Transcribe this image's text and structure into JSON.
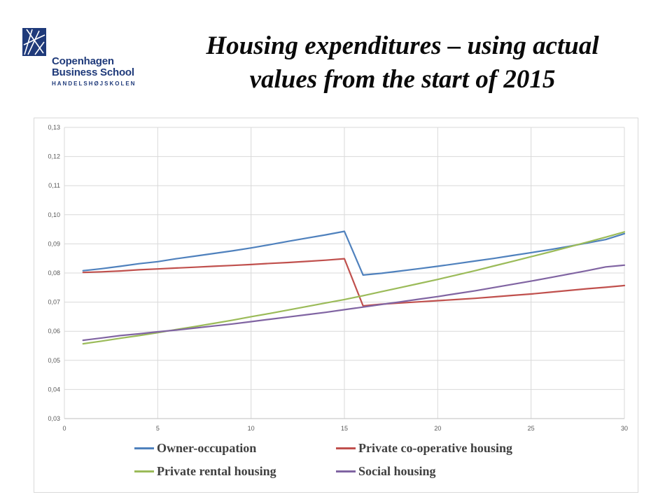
{
  "logo": {
    "line1": "Copenhagen",
    "line2": "Business School",
    "line3": "HANDELSHØJSKOLEN",
    "color": "#1f3a7a"
  },
  "title_line1": "Housing expenditures – using actual",
  "title_line2": "values from the start of 2015",
  "chart_data": {
    "type": "line",
    "title": "Housing expenditures – using actual values from the start of 2015",
    "xlabel": "",
    "ylabel": "",
    "xlim": [
      0,
      30
    ],
    "ylim": [
      0.03,
      0.13
    ],
    "x_ticks": [
      "0",
      "5",
      "10",
      "15",
      "20",
      "25",
      "30"
    ],
    "y_ticks": [
      "0,03",
      "0,04",
      "0,05",
      "0,06",
      "0,07",
      "0,08",
      "0,09",
      "0,10",
      "0,11",
      "0,12",
      "0,13"
    ],
    "grid": true,
    "legend_position": "bottom",
    "x": [
      1,
      2,
      3,
      4,
      5,
      6,
      7,
      8,
      9,
      10,
      11,
      12,
      13,
      14,
      15,
      16,
      17,
      18,
      19,
      20,
      21,
      22,
      23,
      24,
      25,
      26,
      27,
      28,
      29,
      30
    ],
    "series": [
      {
        "name": "Owner-occupation",
        "color": "#4f81bd",
        "values": [
          0.0808,
          0.0815,
          0.0823,
          0.0832,
          0.0839,
          0.0849,
          0.0858,
          0.0867,
          0.0876,
          0.0886,
          0.0897,
          0.0909,
          0.092,
          0.0931,
          0.0943,
          0.0793,
          0.0799,
          0.0807,
          0.0815,
          0.0823,
          0.0832,
          0.0841,
          0.085,
          0.086,
          0.087,
          0.088,
          0.0891,
          0.0903,
          0.0915,
          0.0935
        ]
      },
      {
        "name": "Private co-operative housing",
        "color": "#c0504d",
        "values": [
          0.0802,
          0.0804,
          0.0807,
          0.0811,
          0.0814,
          0.0817,
          0.082,
          0.0823,
          0.0826,
          0.0829,
          0.0833,
          0.0836,
          0.084,
          0.0844,
          0.0849,
          0.0687,
          0.0693,
          0.0697,
          0.0701,
          0.0705,
          0.0709,
          0.0713,
          0.0718,
          0.0723,
          0.0728,
          0.0734,
          0.074,
          0.0746,
          0.0751,
          0.0757
        ]
      },
      {
        "name": "Private rental housing",
        "color": "#9bbb59",
        "values": [
          0.0557,
          0.0566,
          0.0576,
          0.0585,
          0.0595,
          0.0606,
          0.0616,
          0.0627,
          0.0638,
          0.065,
          0.0661,
          0.0673,
          0.0685,
          0.0697,
          0.0709,
          0.0722,
          0.0736,
          0.075,
          0.0764,
          0.0778,
          0.0793,
          0.0808,
          0.0824,
          0.084,
          0.0856,
          0.0872,
          0.0889,
          0.0906,
          0.0923,
          0.0941
        ]
      },
      {
        "name": "Social housing",
        "color": "#8064a2",
        "values": [
          0.0569,
          0.0577,
          0.0585,
          0.0591,
          0.0598,
          0.0604,
          0.0611,
          0.0618,
          0.0625,
          0.0633,
          0.0641,
          0.0649,
          0.0657,
          0.0665,
          0.0674,
          0.0683,
          0.0692,
          0.0701,
          0.071,
          0.0719,
          0.0729,
          0.0739,
          0.075,
          0.0761,
          0.0772,
          0.0784,
          0.0796,
          0.0808,
          0.0821,
          0.0827
        ]
      }
    ]
  }
}
